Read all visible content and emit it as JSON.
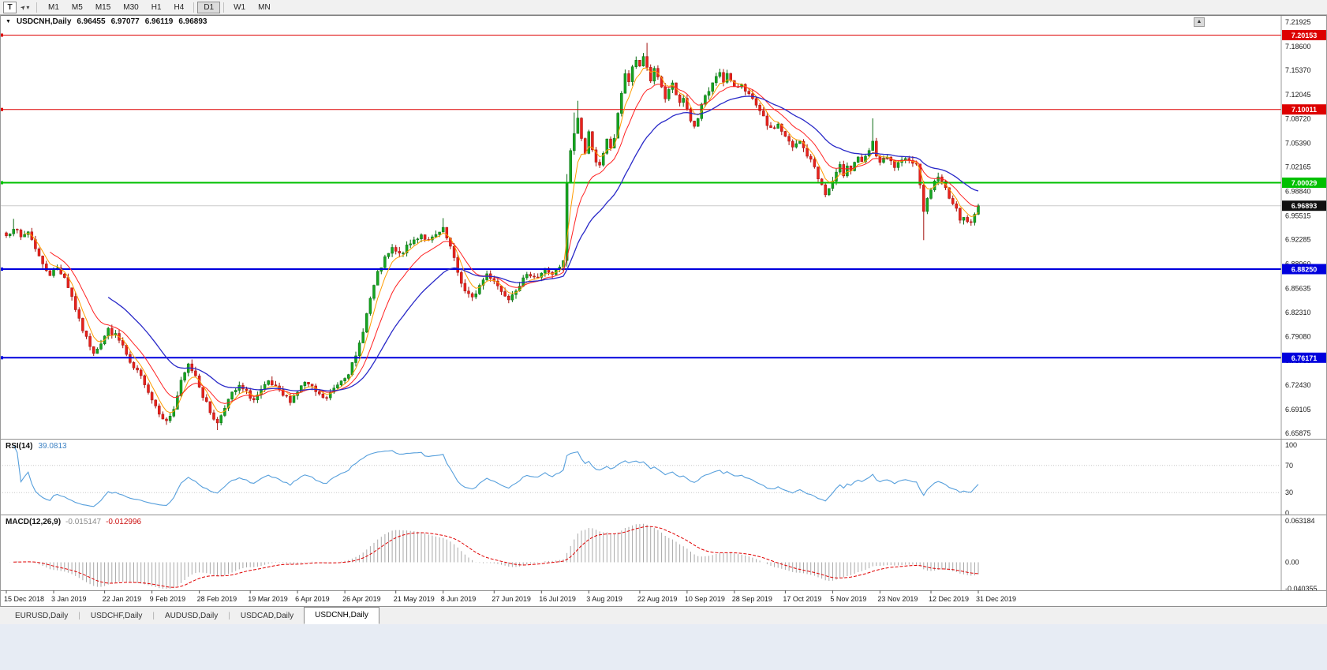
{
  "toolbar": {
    "text_tool_glyph": "T",
    "cursor_tool_glyph": "➤",
    "caret_glyph": "▾",
    "timeframes": [
      {
        "label": "M1"
      },
      {
        "label": "M5"
      },
      {
        "label": "M15"
      },
      {
        "label": "M30"
      },
      {
        "label": "H1"
      },
      {
        "label": "H4"
      },
      {
        "label": "D1",
        "active": true,
        "sep_before": true
      },
      {
        "label": "W1",
        "sep_before": true
      },
      {
        "label": "MN"
      }
    ]
  },
  "chart": {
    "symbol_period": "USDCNH,Daily",
    "dropdown_glyph": "▼",
    "scroll_up_glyph": "▲",
    "open": "6.96455",
    "high": "6.97077",
    "low": "6.96119",
    "close": "6.96893"
  },
  "chart_data": {
    "type": "candlestick",
    "symbol": "USDCNH",
    "timeframe": "Daily",
    "price_axis": {
      "max": 7.21925,
      "min": 6.65875,
      "tick_labels": [
        "7.21925",
        "7.18600",
        "7.15370",
        "7.12045",
        "7.08720",
        "7.05390",
        "7.02165",
        "6.98840",
        "6.95515",
        "6.92285",
        "6.88960",
        "6.85635",
        "6.82310",
        "6.79080",
        "6.75755",
        "6.72430",
        "6.69105",
        "6.65875"
      ]
    },
    "date_ticks": [
      "15 Dec 2018",
      "3 Jan 2019",
      "22 Jan 2019",
      "9 Feb 2019",
      "28 Feb 2019",
      "19 Mar 2019",
      "6 Apr 2019",
      "26 Apr 2019",
      "21 May 2019",
      "8 Jun 2019",
      "27 Jun 2019",
      "16 Jul 2019",
      "3 Aug 2019",
      "22 Aug 2019",
      "10 Sep 2019",
      "28 Sep 2019",
      "17 Oct 2019",
      "5 Nov 2019",
      "23 Nov 2019",
      "12 Dec 2019",
      "31 Dec 2019"
    ],
    "hlines": [
      {
        "price": 7.20153,
        "label": "7.20153",
        "color": "#dd0000",
        "width": 1
      },
      {
        "price": 7.10011,
        "label": "7.10011",
        "color": "#dd0000",
        "width": 1
      },
      {
        "price": 7.00029,
        "label": "7.00029",
        "color": "#00c000",
        "width": 2
      },
      {
        "price": 6.8825,
        "label": "6.88250",
        "color": "#0000dd",
        "width": 2
      },
      {
        "price": 6.76171,
        "label": "6.76171",
        "color": "#0000dd",
        "width": 2
      }
    ],
    "current_price": {
      "value": 6.96893,
      "label": "6.96893",
      "tag_color": "#101010"
    },
    "candles": {
      "count": 268,
      "up_color": "#16a620",
      "up_dark": "#0b6b14",
      "down_color": "#e8221c",
      "down_dark": "#a3120f",
      "close_anchors": [
        [
          0,
          6.928
        ],
        [
          2,
          6.94
        ],
        [
          4,
          6.925
        ],
        [
          6,
          6.934
        ],
        [
          8,
          6.912
        ],
        [
          10,
          6.888
        ],
        [
          12,
          6.876
        ],
        [
          14,
          6.884
        ],
        [
          16,
          6.872
        ],
        [
          18,
          6.845
        ],
        [
          20,
          6.812
        ],
        [
          22,
          6.788
        ],
        [
          24,
          6.77
        ],
        [
          26,
          6.782
        ],
        [
          28,
          6.8
        ],
        [
          30,
          6.792
        ],
        [
          32,
          6.778
        ],
        [
          34,
          6.752
        ],
        [
          36,
          6.742
        ],
        [
          38,
          6.728
        ],
        [
          40,
          6.705
        ],
        [
          42,
          6.688
        ],
        [
          44,
          6.674
        ],
        [
          46,
          6.692
        ],
        [
          48,
          6.728
        ],
        [
          50,
          6.752
        ],
        [
          52,
          6.738
        ],
        [
          54,
          6.71
        ],
        [
          56,
          6.688
        ],
        [
          58,
          6.672
        ],
        [
          60,
          6.696
        ],
        [
          62,
          6.712
        ],
        [
          64,
          6.722
        ],
        [
          66,
          6.714
        ],
        [
          68,
          6.704
        ],
        [
          70,
          6.716
        ],
        [
          72,
          6.728
        ],
        [
          74,
          6.72
        ],
        [
          76,
          6.71
        ],
        [
          78,
          6.704
        ],
        [
          80,
          6.716
        ],
        [
          82,
          6.728
        ],
        [
          84,
          6.72
        ],
        [
          86,
          6.71
        ],
        [
          88,
          6.706
        ],
        [
          90,
          6.72
        ],
        [
          92,
          6.732
        ],
        [
          94,
          6.742
        ],
        [
          96,
          6.762
        ],
        [
          98,
          6.8
        ],
        [
          100,
          6.842
        ],
        [
          102,
          6.876
        ],
        [
          104,
          6.896
        ],
        [
          106,
          6.91
        ],
        [
          108,
          6.902
        ],
        [
          110,
          6.912
        ],
        [
          112,
          6.922
        ],
        [
          114,
          6.93
        ],
        [
          116,
          6.92
        ],
        [
          118,
          6.928
        ],
        [
          120,
          6.936
        ],
        [
          122,
          6.912
        ],
        [
          124,
          6.878
        ],
        [
          126,
          6.852
        ],
        [
          128,
          6.842
        ],
        [
          130,
          6.86
        ],
        [
          132,
          6.876
        ],
        [
          134,
          6.868
        ],
        [
          136,
          6.852
        ],
        [
          138,
          6.844
        ],
        [
          140,
          6.856
        ],
        [
          142,
          6.868
        ],
        [
          144,
          6.876
        ],
        [
          146,
          6.872
        ],
        [
          148,
          6.882
        ],
        [
          150,
          6.876
        ],
        [
          152,
          6.884
        ],
        [
          153,
          6.892
        ],
        [
          154,
          7.0
        ],
        [
          155,
          7.042
        ],
        [
          156,
          7.068
        ],
        [
          157,
          7.088
        ],
        [
          158,
          7.062
        ],
        [
          159,
          7.04
        ],
        [
          160,
          7.068
        ],
        [
          161,
          7.048
        ],
        [
          162,
          7.03
        ],
        [
          163,
          7.022
        ],
        [
          164,
          7.038
        ],
        [
          165,
          7.058
        ],
        [
          166,
          7.048
        ],
        [
          167,
          7.062
        ],
        [
          168,
          7.092
        ],
        [
          169,
          7.124
        ],
        [
          170,
          7.15
        ],
        [
          171,
          7.138
        ],
        [
          172,
          7.156
        ],
        [
          173,
          7.168
        ],
        [
          174,
          7.156
        ],
        [
          175,
          7.172
        ],
        [
          176,
          7.158
        ],
        [
          177,
          7.14
        ],
        [
          178,
          7.156
        ],
        [
          179,
          7.146
        ],
        [
          180,
          7.128
        ],
        [
          181,
          7.114
        ],
        [
          182,
          7.124
        ],
        [
          183,
          7.134
        ],
        [
          184,
          7.12
        ],
        [
          185,
          7.11
        ],
        [
          186,
          7.114
        ],
        [
          187,
          7.098
        ],
        [
          188,
          7.084
        ],
        [
          189,
          7.076
        ],
        [
          190,
          7.09
        ],
        [
          191,
          7.106
        ],
        [
          192,
          7.12
        ],
        [
          193,
          7.124
        ],
        [
          194,
          7.134
        ],
        [
          195,
          7.146
        ],
        [
          196,
          7.152
        ],
        [
          197,
          7.14
        ],
        [
          198,
          7.148
        ],
        [
          199,
          7.138
        ],
        [
          200,
          7.128
        ],
        [
          202,
          7.136
        ],
        [
          204,
          7.12
        ],
        [
          206,
          7.104
        ],
        [
          208,
          7.088
        ],
        [
          210,
          7.072
        ],
        [
          212,
          7.08
        ],
        [
          214,
          7.062
        ],
        [
          216,
          7.048
        ],
        [
          218,
          7.056
        ],
        [
          220,
          7.038
        ],
        [
          222,
          7.022
        ],
        [
          223,
          7.008
        ],
        [
          224,
          6.996
        ],
        [
          225,
          6.984
        ],
        [
          226,
          6.992
        ],
        [
          227,
          7.002
        ],
        [
          228,
          7.012
        ],
        [
          229,
          7.022
        ],
        [
          230,
          7.012
        ],
        [
          231,
          7.026
        ],
        [
          232,
          7.018
        ],
        [
          233,
          7.028
        ],
        [
          234,
          7.036
        ],
        [
          235,
          7.026
        ],
        [
          236,
          7.034
        ],
        [
          237,
          7.044
        ],
        [
          238,
          7.054
        ],
        [
          239,
          7.038
        ],
        [
          240,
          7.028
        ],
        [
          242,
          7.034
        ],
        [
          244,
          7.022
        ],
        [
          246,
          7.028
        ],
        [
          248,
          7.034
        ],
        [
          250,
          7.024
        ],
        [
          251,
          7.0
        ],
        [
          252,
          6.964
        ],
        [
          253,
          6.976
        ],
        [
          254,
          6.992
        ],
        [
          255,
          7.002
        ],
        [
          256,
          7.01
        ],
        [
          257,
          7.0
        ],
        [
          258,
          6.992
        ],
        [
          259,
          6.982
        ],
        [
          260,
          6.972
        ],
        [
          261,
          6.962
        ],
        [
          262,
          6.952
        ],
        [
          263,
          6.956
        ],
        [
          264,
          6.948
        ],
        [
          265,
          6.944
        ],
        [
          266,
          6.956
        ],
        [
          267,
          6.96893
        ]
      ],
      "wick_overrides": [
        {
          "i": 2,
          "high": 6.951
        },
        {
          "i": 58,
          "low": 6.663
        },
        {
          "i": 120,
          "high": 6.952
        },
        {
          "i": 154,
          "low": 6.886,
          "high": 7.012
        },
        {
          "i": 156,
          "high": 7.096
        },
        {
          "i": 157,
          "high": 7.112
        },
        {
          "i": 176,
          "high": 7.191
        },
        {
          "i": 238,
          "high": 7.088
        },
        {
          "i": 252,
          "low": 6.922
        }
      ]
    },
    "moving_averages": [
      {
        "name": "fast-orange",
        "type": "ema",
        "period": 5,
        "color": "#ff9c00",
        "width": 1
      },
      {
        "name": "medium-red",
        "type": "ema",
        "period": 12,
        "color": "#ff2222",
        "width": 1
      },
      {
        "name": "slow-blue",
        "type": "ema",
        "period": 28,
        "color": "#2929c8",
        "width": 1.3
      }
    ],
    "rsi": {
      "label": "RSI(14)",
      "value": "39.0813",
      "period": 14,
      "levels": [
        100,
        70,
        30,
        0
      ],
      "color": "#569fdc"
    },
    "macd": {
      "label": "MACD(12,26,9)",
      "main_value": "-0.015147",
      "signal_value": "-0.012996",
      "fast": 12,
      "slow": 26,
      "signal": 9,
      "axis_labels": [
        "0.063184",
        "0.00",
        "-0.040355"
      ],
      "axis_values": [
        0.063184,
        0,
        -0.040355
      ],
      "hist_color": "#a8a8a8",
      "signal_color": "#e00000"
    }
  },
  "tabs": [
    {
      "label": "EURUSD,Daily"
    },
    {
      "label": "USDCHF,Daily"
    },
    {
      "label": "AUDUSD,Daily"
    },
    {
      "label": "USDCAD,Daily"
    },
    {
      "label": "USDCNH,Daily",
      "active": true
    }
  ]
}
